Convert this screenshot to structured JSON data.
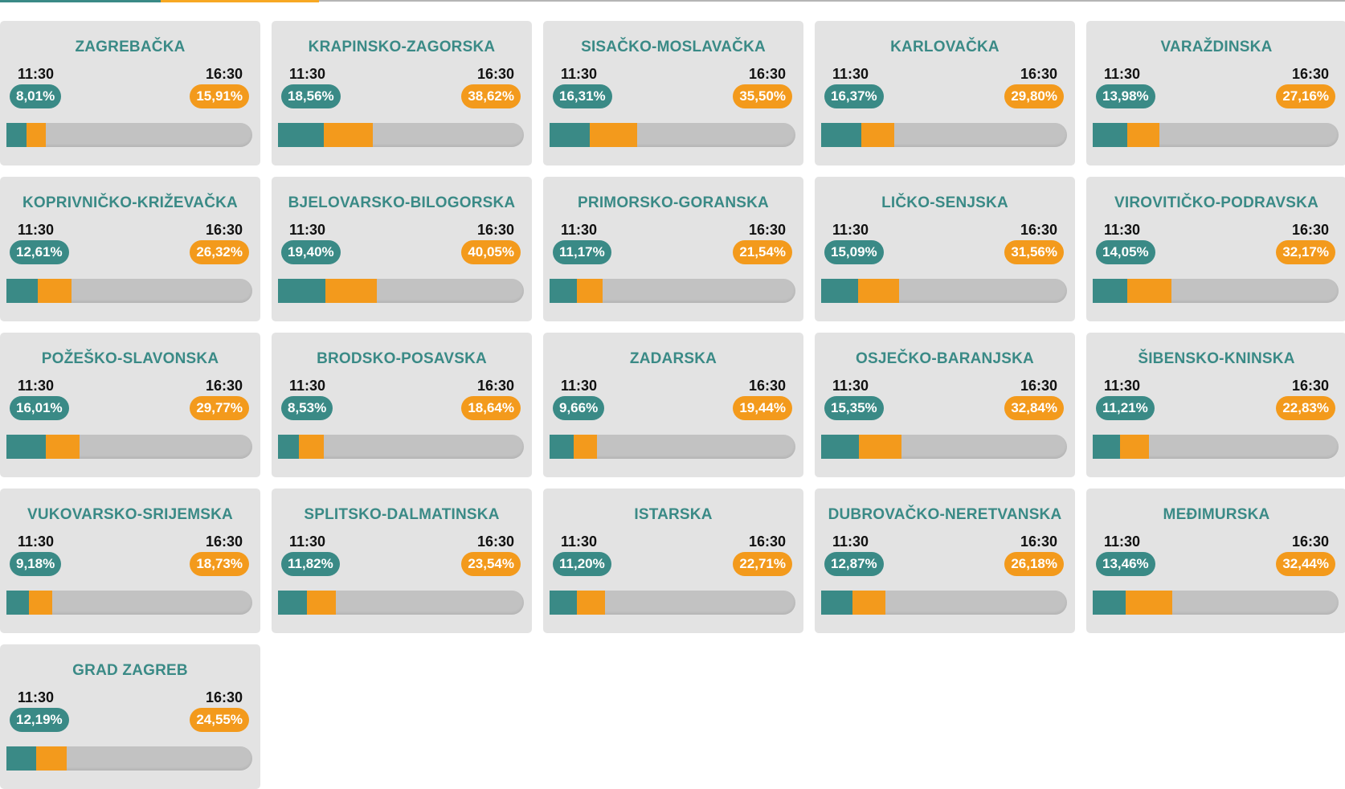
{
  "colors": {
    "teal": "#3a8a86",
    "orange": "#f39a1c",
    "card_bg": "#e3e3e3",
    "bar_bg": "#c2c2c2"
  },
  "time_labels": {
    "early": "11:30",
    "late": "16:30"
  },
  "counties": [
    {
      "name": "ZAGREBAČKA",
      "early": "8,01%",
      "late": "15,91%",
      "early_value": 8.01,
      "late_value": 15.91
    },
    {
      "name": "KRAPINSKO-ZAGORSKA",
      "early": "18,56%",
      "late": "38,62%",
      "early_value": 18.56,
      "late_value": 38.62
    },
    {
      "name": "SISAČKO-MOSLAVAČKA",
      "early": "16,31%",
      "late": "35,50%",
      "early_value": 16.31,
      "late_value": 35.5
    },
    {
      "name": "KARLOVAČKA",
      "early": "16,37%",
      "late": "29,80%",
      "early_value": 16.37,
      "late_value": 29.8
    },
    {
      "name": "VARAŽDINSKA",
      "early": "13,98%",
      "late": "27,16%",
      "early_value": 13.98,
      "late_value": 27.16
    },
    {
      "name": "KOPRIVNIČKO-KRIŽEVAČKA",
      "early": "12,61%",
      "late": "26,32%",
      "early_value": 12.61,
      "late_value": 26.32
    },
    {
      "name": "BJELOVARSKO-BILOGORSKA",
      "early": "19,40%",
      "late": "40,05%",
      "early_value": 19.4,
      "late_value": 40.05
    },
    {
      "name": "PRIMORSKO-GORANSKA",
      "early": "11,17%",
      "late": "21,54%",
      "early_value": 11.17,
      "late_value": 21.54
    },
    {
      "name": "LIČKO-SENJSKA",
      "early": "15,09%",
      "late": "31,56%",
      "early_value": 15.09,
      "late_value": 31.56
    },
    {
      "name": "VIROVITIČKO-PODRAVSKA",
      "early": "14,05%",
      "late": "32,17%",
      "early_value": 14.05,
      "late_value": 32.17
    },
    {
      "name": "POŽEŠKO-SLAVONSKA",
      "early": "16,01%",
      "late": "29,77%",
      "early_value": 16.01,
      "late_value": 29.77
    },
    {
      "name": "BRODSKO-POSAVSKA",
      "early": "8,53%",
      "late": "18,64%",
      "early_value": 8.53,
      "late_value": 18.64
    },
    {
      "name": "ZADARSKA",
      "early": "9,66%",
      "late": "19,44%",
      "early_value": 9.66,
      "late_value": 19.44
    },
    {
      "name": "OSJEČKO-BARANJSKA",
      "early": "15,35%",
      "late": "32,84%",
      "early_value": 15.35,
      "late_value": 32.84
    },
    {
      "name": "ŠIBENSKO-KNINSKA",
      "early": "11,21%",
      "late": "22,83%",
      "early_value": 11.21,
      "late_value": 22.83
    },
    {
      "name": "VUKOVARSKO-SRIJEMSKA",
      "early": "9,18%",
      "late": "18,73%",
      "early_value": 9.18,
      "late_value": 18.73
    },
    {
      "name": "SPLITSKO-DALMATINSKA",
      "early": "11,82%",
      "late": "23,54%",
      "early_value": 11.82,
      "late_value": 23.54
    },
    {
      "name": "ISTARSKA",
      "early": "11,20%",
      "late": "22,71%",
      "early_value": 11.2,
      "late_value": 22.71
    },
    {
      "name": "DUBROVAČKO-NERETVANSKA",
      "early": "12,87%",
      "late": "26,18%",
      "early_value": 12.87,
      "late_value": 26.18
    },
    {
      "name": "MEĐIMURSKA",
      "early": "13,46%",
      "late": "32,44%",
      "early_value": 13.46,
      "late_value": 32.44
    },
    {
      "name": "GRAD ZAGREB",
      "early": "12,19%",
      "late": "24,55%",
      "early_value": 12.19,
      "late_value": 24.55
    }
  ]
}
